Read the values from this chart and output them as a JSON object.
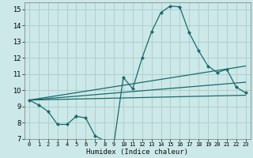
{
  "title": "",
  "xlabel": "Humidex (Indice chaleur)",
  "xlim": [
    -0.5,
    23.5
  ],
  "ylim": [
    7,
    15.4
  ],
  "yticks": [
    7,
    8,
    9,
    10,
    11,
    12,
    13,
    14,
    15
  ],
  "xticks": [
    0,
    1,
    2,
    3,
    4,
    5,
    6,
    7,
    8,
    9,
    10,
    11,
    12,
    13,
    14,
    15,
    16,
    17,
    18,
    19,
    20,
    21,
    22,
    23
  ],
  "bg_color": "#cce8e8",
  "grid_color": "#aacccc",
  "line_color": "#1a6b6b",
  "main_series": {
    "x": [
      0,
      1,
      2,
      3,
      4,
      5,
      5,
      6,
      7,
      8,
      9,
      10,
      11,
      12,
      13,
      14,
      15,
      16,
      17,
      18,
      19,
      20,
      21,
      22,
      23
    ],
    "y": [
      9.4,
      9.1,
      8.7,
      7.9,
      7.9,
      8.4,
      8.4,
      8.3,
      7.2,
      6.9,
      6.7,
      10.8,
      10.1,
      12.0,
      13.6,
      14.8,
      15.2,
      15.15,
      13.55,
      12.45,
      11.5,
      11.1,
      11.3,
      10.2,
      9.85
    ]
  },
  "trend_lines": [
    {
      "x": [
        0,
        23
      ],
      "y": [
        9.4,
        11.5
      ]
    },
    {
      "x": [
        0,
        23
      ],
      "y": [
        9.4,
        10.5
      ]
    },
    {
      "x": [
        0,
        23
      ],
      "y": [
        9.4,
        9.7
      ]
    }
  ]
}
